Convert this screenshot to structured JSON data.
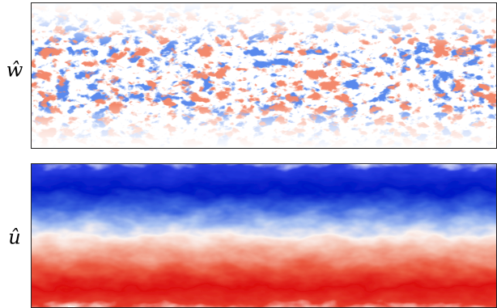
{
  "panels": [
    {
      "label": "ŵ"
    },
    {
      "label": "û"
    }
  ]
}
